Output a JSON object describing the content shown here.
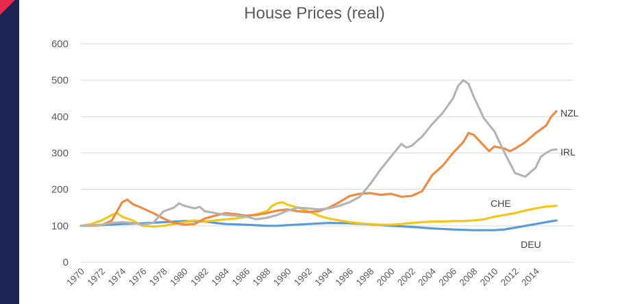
{
  "page": {
    "title": "House Prices (real)"
  },
  "chart_data": {
    "type": "line",
    "title": "House Prices (real)",
    "xlabel": "",
    "ylabel": "",
    "xlim": [
      1970,
      2016
    ],
    "ylim": [
      0,
      600
    ],
    "yticks": [
      0,
      100,
      200,
      300,
      400,
      500,
      600
    ],
    "xticks": [
      "1970",
      "1972",
      "1974",
      "1976",
      "1978",
      "1980",
      "1982",
      "1984",
      "1986",
      "1988",
      "1990",
      "1992",
      "1994",
      "1996",
      "1998",
      "2000",
      "2002",
      "2004",
      "2006",
      "2008",
      "2010",
      "2012",
      "2014"
    ],
    "grid": "horizontal",
    "legend": "inline-labels-right",
    "series": [
      {
        "name": "IRL",
        "color": "#b4b4b4",
        "points": [
          [
            1970,
            100
          ],
          [
            1972,
            103
          ],
          [
            1973,
            108
          ],
          [
            1974,
            110
          ],
          [
            1975,
            108
          ],
          [
            1976,
            103
          ],
          [
            1977,
            108
          ],
          [
            1978,
            140
          ],
          [
            1979,
            150
          ],
          [
            1979.5,
            162
          ],
          [
            1980,
            155
          ],
          [
            1981,
            148
          ],
          [
            1981.5,
            152
          ],
          [
            1982,
            140
          ],
          [
            1983,
            135
          ],
          [
            1984,
            130
          ],
          [
            1985,
            128
          ],
          [
            1986,
            125
          ],
          [
            1987,
            118
          ],
          [
            1988,
            122
          ],
          [
            1989,
            130
          ],
          [
            1990,
            142
          ],
          [
            1991,
            150
          ],
          [
            1992,
            148
          ],
          [
            1993,
            145
          ],
          [
            1994,
            148
          ],
          [
            1995,
            155
          ],
          [
            1996,
            165
          ],
          [
            1997,
            180
          ],
          [
            1998,
            215
          ],
          [
            1999,
            255
          ],
          [
            2000,
            290
          ],
          [
            2001,
            325
          ],
          [
            2001.5,
            315
          ],
          [
            2002,
            320
          ],
          [
            2003,
            345
          ],
          [
            2004,
            380
          ],
          [
            2005,
            410
          ],
          [
            2006,
            450
          ],
          [
            2006.5,
            485
          ],
          [
            2007,
            500
          ],
          [
            2007.5,
            490
          ],
          [
            2008,
            455
          ],
          [
            2009,
            395
          ],
          [
            2010,
            360
          ],
          [
            2011,
            300
          ],
          [
            2012,
            245
          ],
          [
            2012.5,
            240
          ],
          [
            2013,
            235
          ],
          [
            2014,
            260
          ],
          [
            2014.5,
            290
          ],
          [
            2015,
            300
          ],
          [
            2015.5,
            308
          ],
          [
            2016,
            310
          ]
        ]
      },
      {
        "name": "NZL",
        "color": "#ed8b45",
        "points": [
          [
            1970,
            100
          ],
          [
            1971,
            100
          ],
          [
            1972,
            102
          ],
          [
            1973,
            115
          ],
          [
            1973.5,
            140
          ],
          [
            1974,
            165
          ],
          [
            1974.5,
            172
          ],
          [
            1975,
            160
          ],
          [
            1976,
            148
          ],
          [
            1977,
            135
          ],
          [
            1978,
            120
          ],
          [
            1979,
            108
          ],
          [
            1980,
            103
          ],
          [
            1981,
            105
          ],
          [
            1982,
            120
          ],
          [
            1983,
            128
          ],
          [
            1984,
            135
          ],
          [
            1985,
            132
          ],
          [
            1986,
            128
          ],
          [
            1987,
            130
          ],
          [
            1988,
            135
          ],
          [
            1989,
            142
          ],
          [
            1990,
            145
          ],
          [
            1991,
            140
          ],
          [
            1992,
            138
          ],
          [
            1993,
            140
          ],
          [
            1994,
            150
          ],
          [
            1995,
            165
          ],
          [
            1996,
            182
          ],
          [
            1997,
            188
          ],
          [
            1998,
            190
          ],
          [
            1999,
            185
          ],
          [
            2000,
            188
          ],
          [
            2001,
            180
          ],
          [
            2002,
            182
          ],
          [
            2003,
            195
          ],
          [
            2004,
            240
          ],
          [
            2005,
            265
          ],
          [
            2006,
            300
          ],
          [
            2006.5,
            315
          ],
          [
            2007,
            330
          ],
          [
            2007.5,
            355
          ],
          [
            2008,
            350
          ],
          [
            2009,
            320
          ],
          [
            2009.5,
            305
          ],
          [
            2010,
            318
          ],
          [
            2011,
            312
          ],
          [
            2011.5,
            305
          ],
          [
            2012,
            312
          ],
          [
            2013,
            330
          ],
          [
            2014,
            355
          ],
          [
            2015,
            375
          ],
          [
            2015.5,
            400
          ],
          [
            2016,
            415
          ]
        ]
      },
      {
        "name": "CHE",
        "color": "#f4c617",
        "points": [
          [
            1970,
            100
          ],
          [
            1971,
            105
          ],
          [
            1972,
            115
          ],
          [
            1973,
            130
          ],
          [
            1973.5,
            135
          ],
          [
            1974,
            125
          ],
          [
            1975,
            115
          ],
          [
            1976,
            100
          ],
          [
            1977,
            98
          ],
          [
            1978,
            100
          ],
          [
            1979,
            105
          ],
          [
            1980,
            110
          ],
          [
            1981,
            115
          ],
          [
            1982,
            112
          ],
          [
            1983,
            115
          ],
          [
            1984,
            118
          ],
          [
            1985,
            120
          ],
          [
            1986,
            125
          ],
          [
            1987,
            132
          ],
          [
            1988,
            140
          ],
          [
            1988.5,
            155
          ],
          [
            1989,
            162
          ],
          [
            1989.5,
            165
          ],
          [
            1990,
            158
          ],
          [
            1991,
            150
          ],
          [
            1992,
            140
          ],
          [
            1993,
            128
          ],
          [
            1994,
            120
          ],
          [
            1995,
            115
          ],
          [
            1996,
            110
          ],
          [
            1997,
            107
          ],
          [
            1998,
            105
          ],
          [
            1999,
            103
          ],
          [
            2000,
            103
          ],
          [
            2001,
            105
          ],
          [
            2002,
            108
          ],
          [
            2003,
            110
          ],
          [
            2004,
            112
          ],
          [
            2005,
            112
          ],
          [
            2006,
            113
          ],
          [
            2007,
            113
          ],
          [
            2008,
            115
          ],
          [
            2009,
            118
          ],
          [
            2010,
            125
          ],
          [
            2011,
            130
          ],
          [
            2012,
            135
          ],
          [
            2013,
            142
          ],
          [
            2014,
            148
          ],
          [
            2015,
            153
          ],
          [
            2016,
            155
          ]
        ]
      },
      {
        "name": "DEU",
        "color": "#5b9bd5",
        "points": [
          [
            1970,
            100
          ],
          [
            1972,
            102
          ],
          [
            1974,
            105
          ],
          [
            1976,
            107
          ],
          [
            1978,
            110
          ],
          [
            1980,
            113
          ],
          [
            1982,
            112
          ],
          [
            1983,
            108
          ],
          [
            1984,
            105
          ],
          [
            1986,
            103
          ],
          [
            1988,
            100
          ],
          [
            1989,
            100
          ],
          [
            1990,
            102
          ],
          [
            1992,
            105
          ],
          [
            1994,
            108
          ],
          [
            1996,
            107
          ],
          [
            1998,
            104
          ],
          [
            2000,
            100
          ],
          [
            2002,
            97
          ],
          [
            2004,
            93
          ],
          [
            2006,
            90
          ],
          [
            2008,
            88
          ],
          [
            2010,
            88
          ],
          [
            2011,
            90
          ],
          [
            2012,
            95
          ],
          [
            2013,
            100
          ],
          [
            2014,
            105
          ],
          [
            2015,
            110
          ],
          [
            2016,
            115
          ]
        ]
      }
    ]
  }
}
